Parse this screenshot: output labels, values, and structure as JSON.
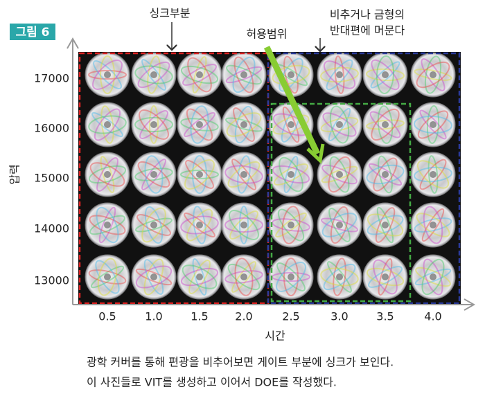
{
  "figure": {
    "label": "그림 6",
    "annotations": {
      "sink": "싱크부분",
      "range": "허용범위",
      "far_1": "비추거나 금형의",
      "far_2": "반대편에 머문다"
    },
    "y_axis": {
      "label": "압력",
      "ticks": [
        "17000",
        "16000",
        "15000",
        "14000",
        "13000"
      ]
    },
    "x_axis": {
      "label": "시간",
      "ticks": [
        "0.5",
        "1.0",
        "1.5",
        "2.0",
        "2.5",
        "3.0",
        "3.5",
        "4.0"
      ]
    },
    "caption": [
      "광학 커버를 통해 편광을 비추어보면 게이트 부분에 싱크가 보인다.",
      "이 사진들로 VIT를 생성하고 이어서 DOE를 작성했다."
    ]
  }
}
